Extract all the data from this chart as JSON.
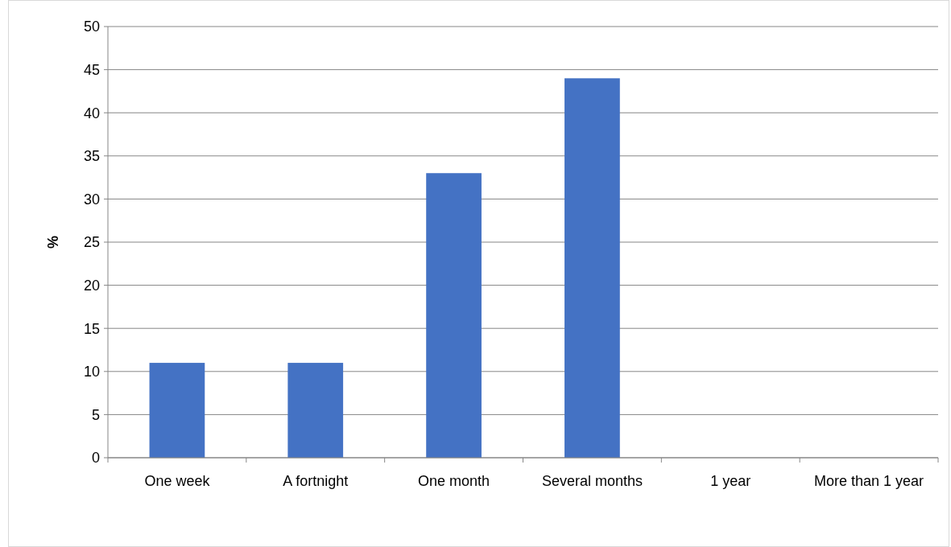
{
  "chart_data": {
    "type": "bar",
    "ylabel": "%",
    "categories": [
      "One week",
      "A fortnight",
      "One month",
      "Several months",
      "1 year",
      "More than 1 year"
    ],
    "values": [
      11,
      11,
      33,
      44,
      0,
      0
    ],
    "color": "#4472c4",
    "ylim": [
      0,
      50
    ],
    "yticks": [
      0,
      5,
      10,
      15,
      20,
      25,
      30,
      35,
      40,
      45,
      50
    ],
    "grid": "y"
  }
}
